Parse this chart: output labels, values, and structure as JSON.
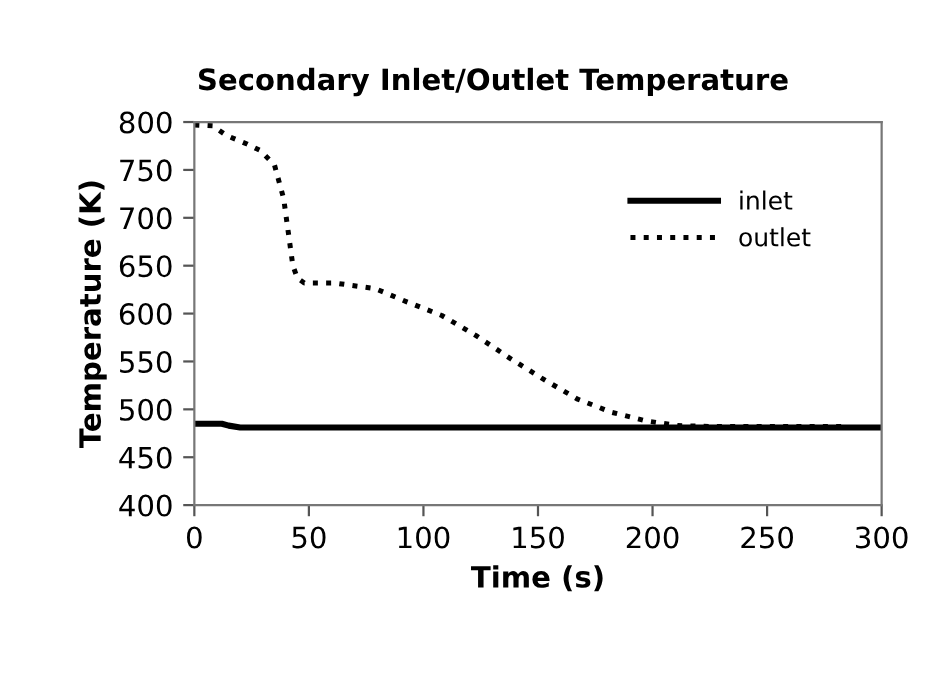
{
  "chart_data": {
    "type": "line",
    "title": "Secondary Inlet/Outlet Temperature",
    "xlabel": "Time (s)",
    "ylabel": "Temperature (K)",
    "xlim": [
      0,
      300
    ],
    "xticks": [
      0,
      50,
      100,
      150,
      200,
      250,
      300
    ],
    "ylim": [
      400,
      800
    ],
    "yticks": [
      400,
      450,
      500,
      550,
      600,
      650,
      700,
      750,
      800
    ],
    "grid": false,
    "legend": "top right",
    "marker": "none",
    "series": [
      {
        "name": "inlet",
        "color": "#000000",
        "line_style": "solid",
        "x": [
          0,
          12,
          15,
          20,
          100,
          200,
          300
        ],
        "values": [
          485,
          485,
          483,
          481,
          481,
          481,
          481
        ]
      },
      {
        "name": "outlet",
        "color": "#000000",
        "line_style": "dotted",
        "x": [
          0,
          8,
          14,
          23,
          29,
          35,
          39,
          41,
          43,
          45,
          48,
          61,
          79,
          93,
          108,
          123,
          138,
          152,
          167,
          182,
          197,
          211,
          226,
          283
        ],
        "values": [
          797,
          796,
          786,
          777,
          770,
          755,
          720,
          685,
          650,
          637,
          632,
          632,
          626,
          612,
          598,
          577,
          553,
          532,
          511,
          497,
          488,
          483,
          482,
          482
        ]
      }
    ]
  }
}
